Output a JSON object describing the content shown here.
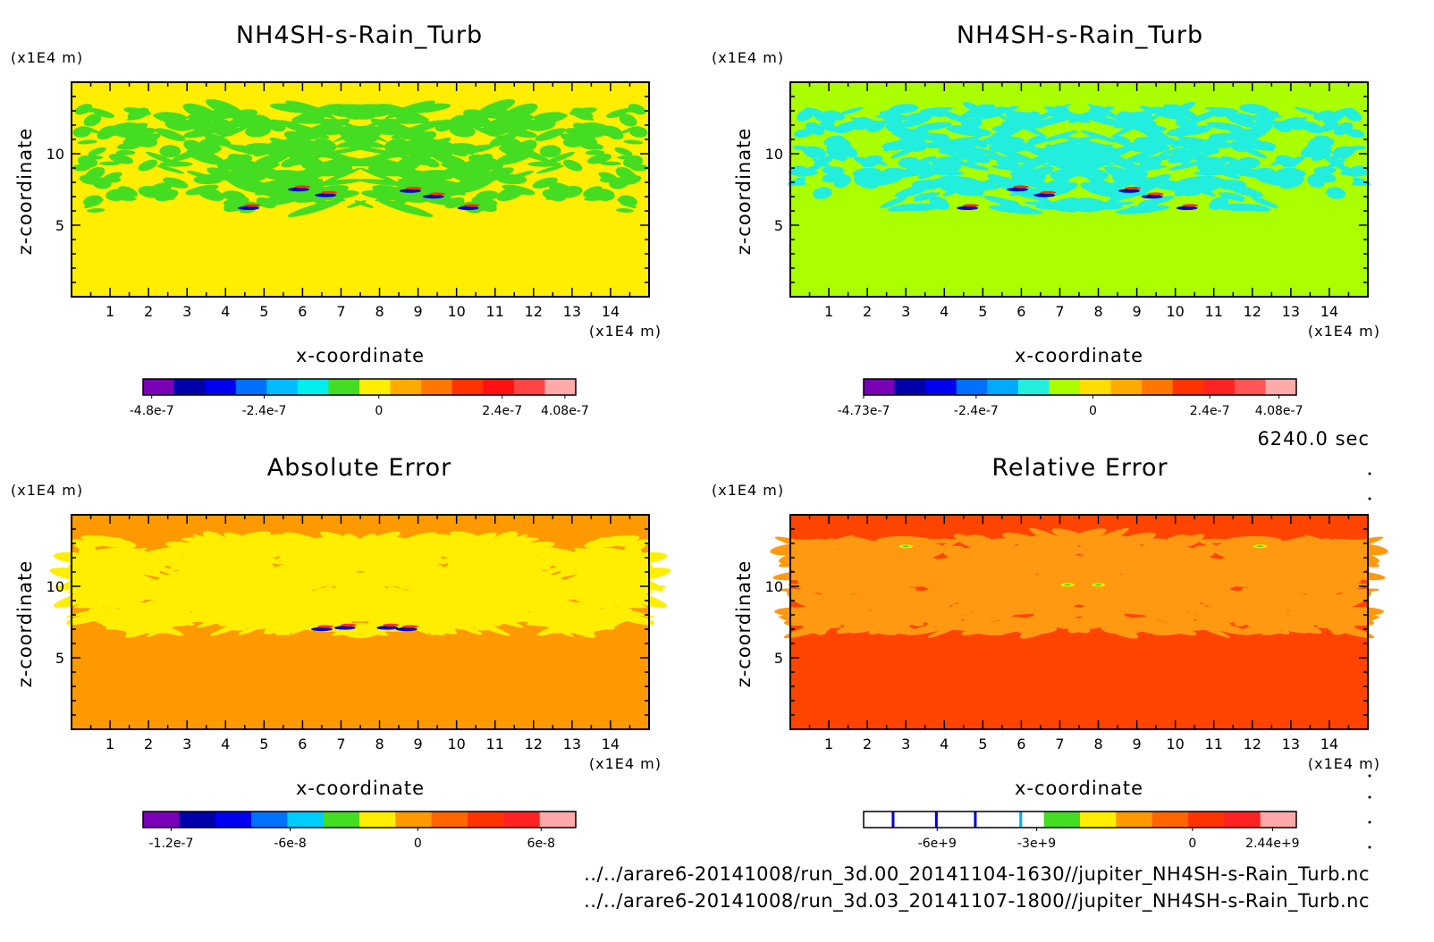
{
  "time_label": "6240.0 sec",
  "file_paths": [
    "../../arare6-20141008/run_3d.00_20141104-1630//jupiter_NH4SH-s-Rain_Turb.nc",
    "../../arare6-20141008/run_3d.03_20141107-1800//jupiter_NH4SH-s-Rain_Turb.nc"
  ],
  "chart_data": [
    {
      "type": "heatmap",
      "title": "NH4SH-s-Rain_Turb",
      "xlabel": "x-coordinate",
      "ylabel": "z-coordinate",
      "x_unit": "(x1E4 m)",
      "y_unit": "(x1E4 m)",
      "xlim": [
        0,
        15
      ],
      "ylim": [
        0,
        15
      ],
      "x_ticks": [
        1,
        2,
        3,
        4,
        5,
        6,
        7,
        8,
        9,
        10,
        11,
        12,
        13,
        14
      ],
      "y_ticks": [
        5,
        10
      ],
      "background": "#ffee00",
      "pattern_color": "#44dd22",
      "colorbar": {
        "colors": [
          "#7a00b8",
          "#0000aa",
          "#0000ee",
          "#0070ff",
          "#00bbff",
          "#00eeee",
          "#44dd22",
          "#ffee00",
          "#ffaa00",
          "#ff7700",
          "#ff3300",
          "#ff1111",
          "#ff4444",
          "#ffaaaa"
        ],
        "tick_labels": [
          "-4.8e-7",
          "-2.4e-7",
          "0",
          "2.4e-7",
          "4.08e-7"
        ]
      }
    },
    {
      "type": "heatmap",
      "title": "NH4SH-s-Rain_Turb",
      "xlabel": "x-coordinate",
      "ylabel": "z-coordinate",
      "x_unit": "(x1E4 m)",
      "y_unit": "(x1E4 m)",
      "xlim": [
        0,
        15
      ],
      "ylim": [
        0,
        15
      ],
      "x_ticks": [
        1,
        2,
        3,
        4,
        5,
        6,
        7,
        8,
        9,
        10,
        11,
        12,
        13,
        14
      ],
      "y_ticks": [
        5,
        10
      ],
      "background": "#aaff00",
      "pattern_color": "#22eedd",
      "colorbar": {
        "colors": [
          "#7a00b8",
          "#0000aa",
          "#0000ee",
          "#0070ff",
          "#00aaff",
          "#22eedd",
          "#aaff00",
          "#ffdd00",
          "#ffaa00",
          "#ff7700",
          "#ff3300",
          "#ff2222",
          "#ff5555",
          "#ffaaaa"
        ],
        "tick_labels": [
          "-4.73e-7",
          "-2.4e-7",
          "0",
          "2.4e-7",
          "4.08e-7"
        ]
      }
    },
    {
      "type": "heatmap",
      "title": "Absolute Error",
      "xlabel": "x-coordinate",
      "ylabel": "z-coordinate",
      "x_unit": "(x1E4 m)",
      "y_unit": "(x1E4 m)",
      "xlim": [
        0,
        15
      ],
      "ylim": [
        0,
        15
      ],
      "x_ticks": [
        1,
        2,
        3,
        4,
        5,
        6,
        7,
        8,
        9,
        10,
        11,
        12,
        13,
        14
      ],
      "y_ticks": [
        5,
        10
      ],
      "background": "#ff9900",
      "pattern_color": "#ffee00",
      "colorbar": {
        "colors": [
          "#7a00b8",
          "#0000aa",
          "#0000ee",
          "#0070ff",
          "#00ccff",
          "#44dd22",
          "#ffee00",
          "#ff9900",
          "#ff6600",
          "#ff3300",
          "#ff2222",
          "#ffaaaa"
        ],
        "tick_labels": [
          "-1.2e-7",
          "-6e-8",
          "0",
          "6e-8"
        ]
      }
    },
    {
      "type": "heatmap",
      "title": "Relative Error",
      "xlabel": "x-coordinate",
      "ylabel": "z-coordinate",
      "x_unit": "(x1E4 m)",
      "y_unit": "(x1E4 m)",
      "xlim": [
        0,
        15
      ],
      "ylim": [
        0,
        15
      ],
      "x_ticks": [
        1,
        2,
        3,
        4,
        5,
        6,
        7,
        8,
        9,
        10,
        11,
        12,
        13,
        14
      ],
      "y_ticks": [
        5,
        10
      ],
      "background": "#ff4400",
      "pattern_color": "#ff9911",
      "colorbar": {
        "colors": [
          "#ffffff",
          "#ffffff",
          "#ffffff",
          "#ffffff",
          "#ffffff",
          "#44dd22",
          "#ffee00",
          "#ff9900",
          "#ff6600",
          "#ff3300",
          "#ff2222",
          "#ffaaaa"
        ],
        "tick_labels": [
          "-6e+9",
          "-3e+9",
          "0",
          "2.44e+9"
        ]
      }
    }
  ]
}
